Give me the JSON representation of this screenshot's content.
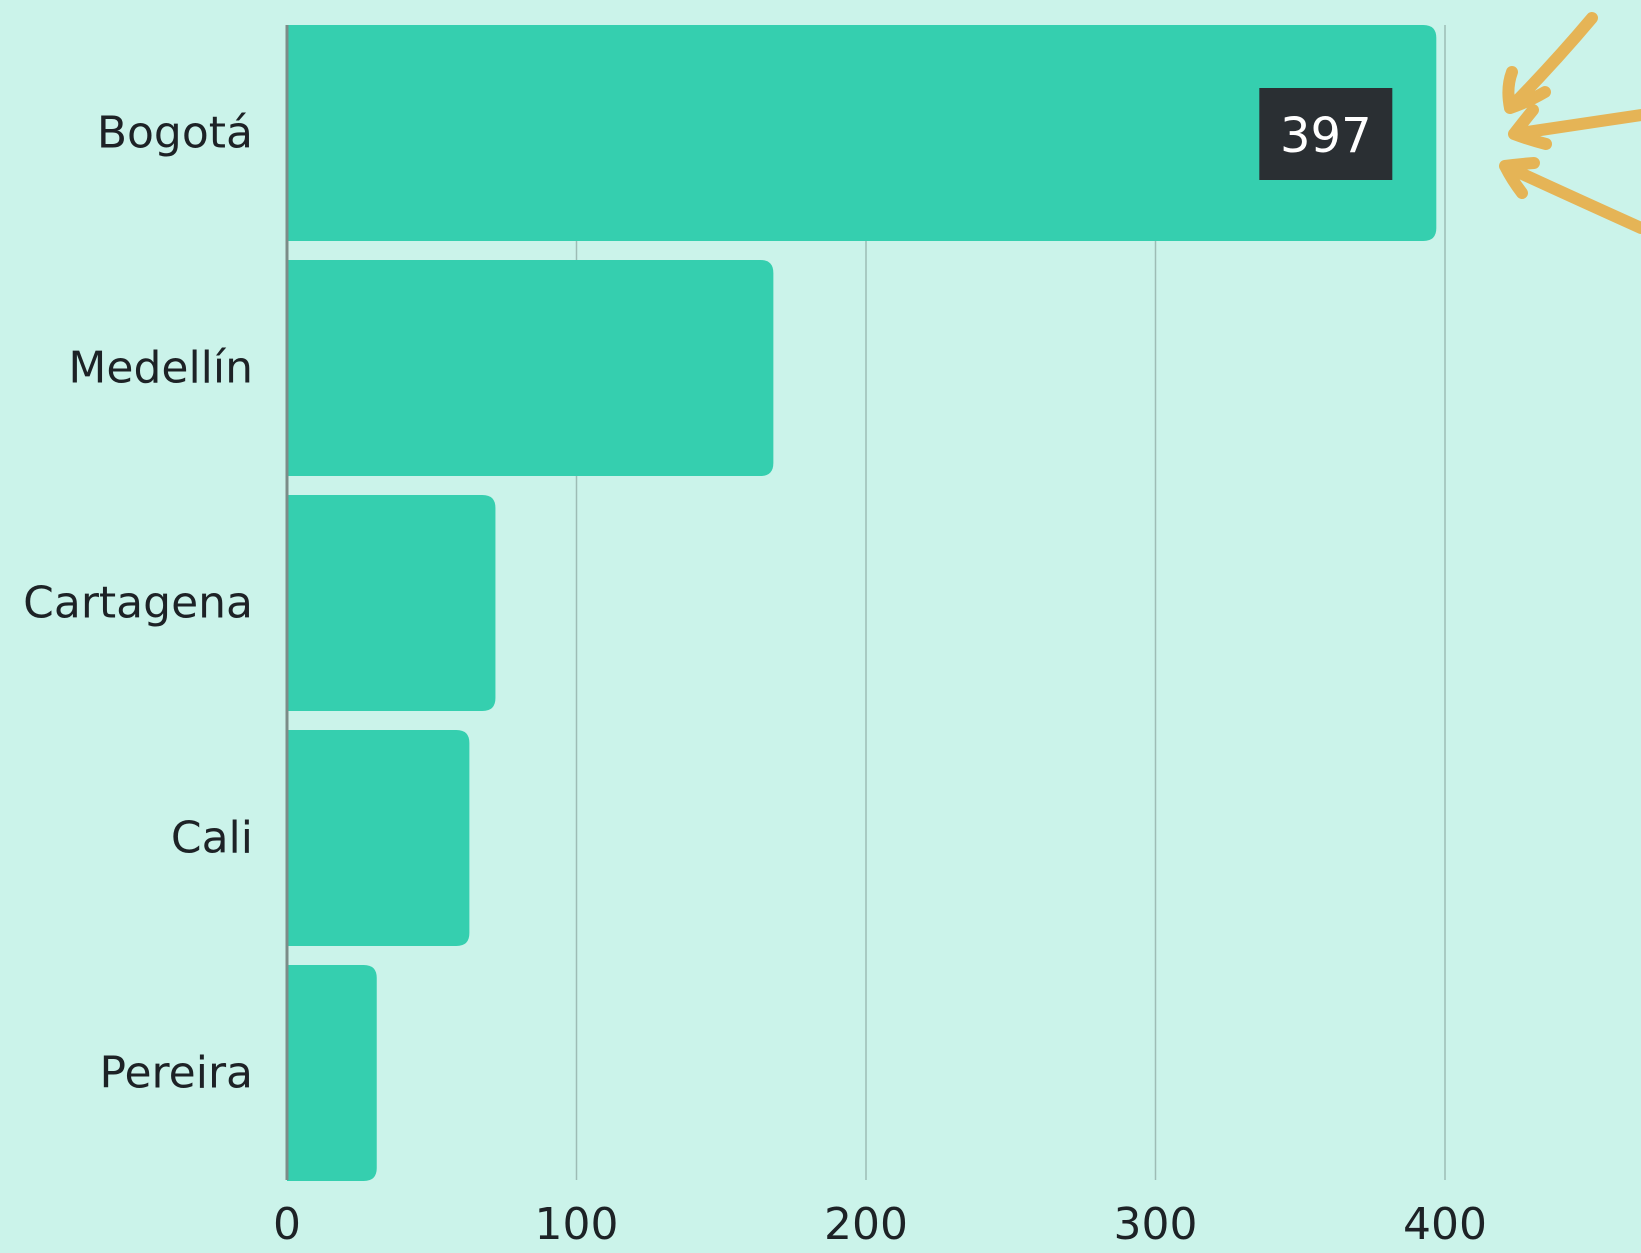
{
  "colors": {
    "background": "#CBF3EA",
    "bar": "#35CFAF",
    "grid": "#9DBCB5",
    "baseline": "#7C8C88",
    "text": "#1D2226",
    "label_box": "#2A2F33",
    "label_text": "#FFFFFF",
    "arrows": "#E5B456"
  },
  "chart_data": {
    "type": "bar",
    "orientation": "horizontal",
    "categories": [
      "Bogotá",
      "Medellín",
      "Cartagena",
      "Cali",
      "Pereira"
    ],
    "values": [
      397,
      168,
      72,
      63,
      31
    ],
    "xlim": [
      0,
      400
    ],
    "x_ticks": [
      0,
      100,
      200,
      300,
      400
    ],
    "grid": "vertical",
    "highlight": {
      "category": "Bogotá",
      "label": "397",
      "annotation": "three hand-drawn arrows pointing at the bar end"
    }
  }
}
